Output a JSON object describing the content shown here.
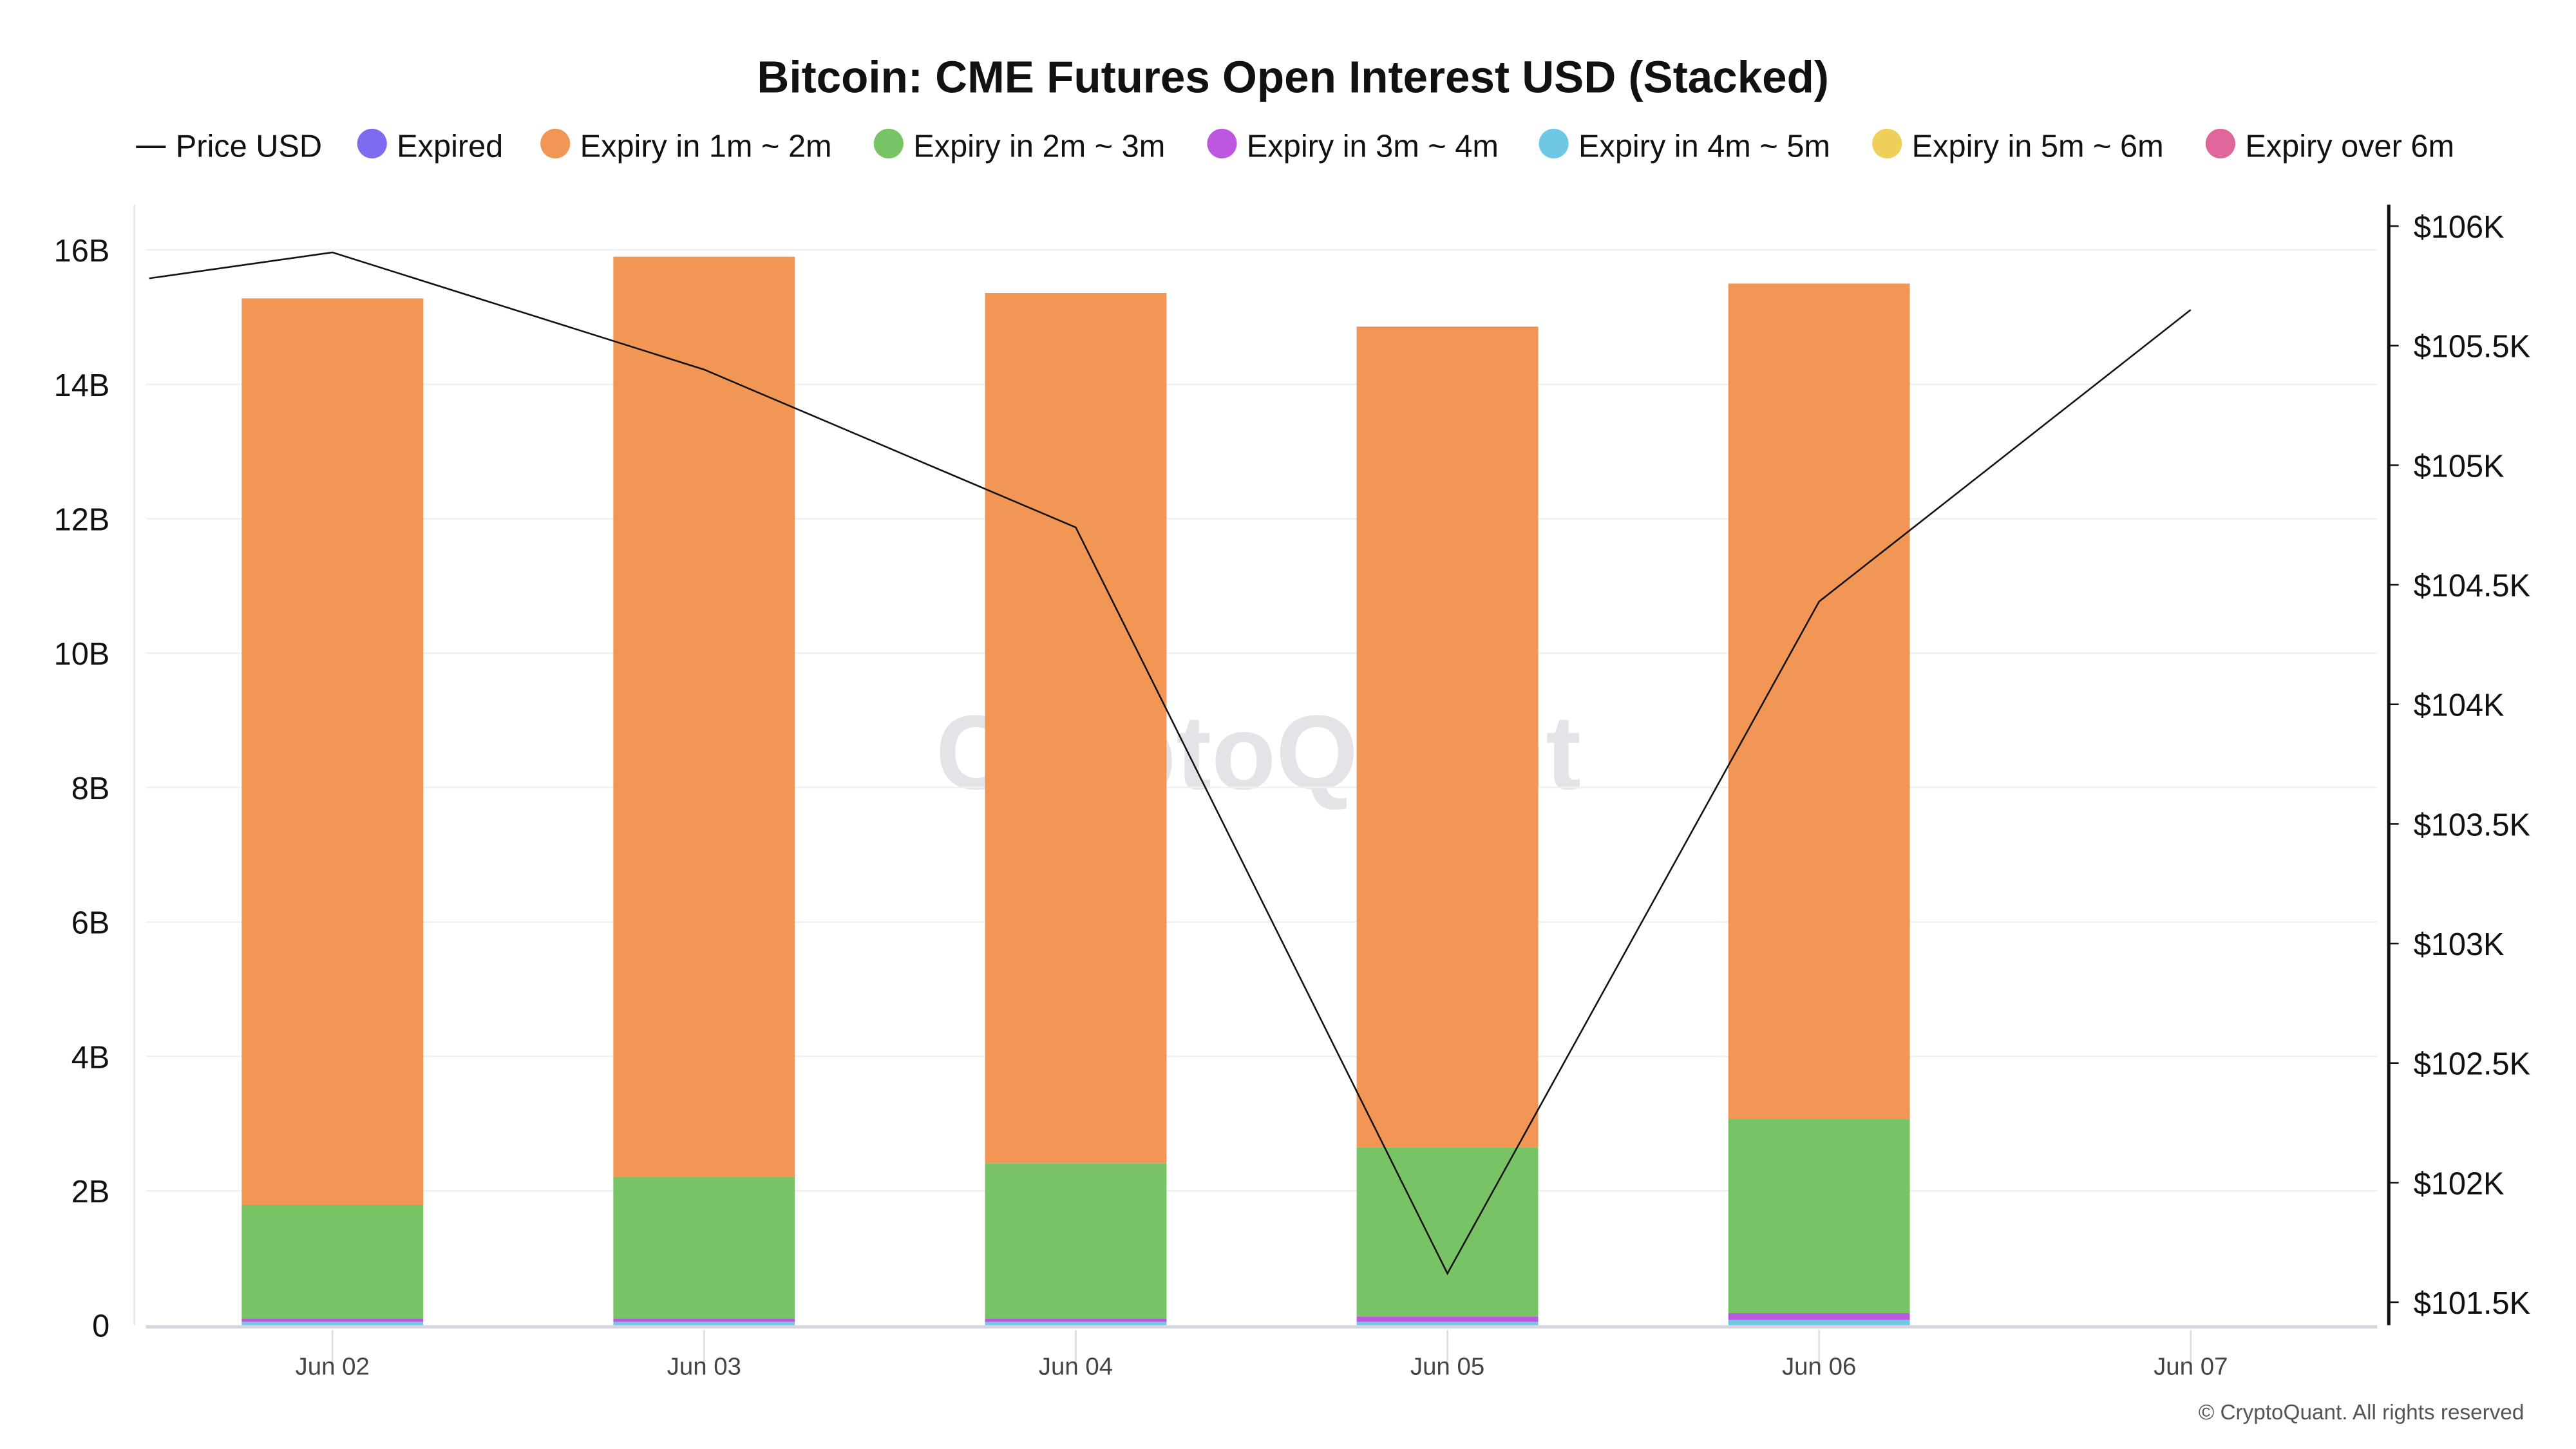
{
  "chart_data": {
    "type": "bar",
    "title": "Bitcoin: CME Futures Open Interest USD (Stacked)",
    "stacked": true,
    "categories": [
      "Jun 02",
      "Jun 03",
      "Jun 04",
      "Jun 05",
      "Jun 06",
      "Jun 07"
    ],
    "series": [
      {
        "name": "Expired",
        "color": "#7b6cf0",
        "values": [
          0,
          0,
          0,
          0,
          0,
          0
        ]
      },
      {
        "name": "Expiry in 4m ~ 5m",
        "color": "#6ec8e4",
        "values": [
          0.05,
          0.05,
          0.05,
          0.05,
          0.08,
          0
        ]
      },
      {
        "name": "Expiry in 3m ~ 4m",
        "color": "#bd57e0",
        "values": [
          0.05,
          0.05,
          0.05,
          0.08,
          0.1,
          0
        ]
      },
      {
        "name": "Expiry in 2m ~ 3m",
        "color": "#78c365",
        "values": [
          1.69,
          2.11,
          2.31,
          2.52,
          2.89,
          0
        ]
      },
      {
        "name": "Expiry in 1m ~ 2m",
        "color": "#f29656",
        "values": [
          13.49,
          13.69,
          12.95,
          12.21,
          12.43,
          0
        ]
      },
      {
        "name": "Expiry in 5m ~ 6m",
        "color": "#edcf5a",
        "values": [
          0,
          0,
          0,
          0,
          0,
          0
        ]
      },
      {
        "name": "Expiry over 6m",
        "color": "#e0679b",
        "values": [
          0,
          0,
          0,
          0,
          0,
          0
        ]
      }
    ],
    "line": {
      "name": "Price USD",
      "color": "#111111",
      "x": [
        1.5,
        2,
        3,
        4,
        5,
        6,
        7
      ],
      "values": [
        105.78,
        105.89,
        105.4,
        104.74,
        101.62,
        104.43,
        105.65
      ]
    },
    "legend": [
      "Price USD",
      "Expired",
      "Expiry in 1m ~ 2m",
      "Expiry in 2m ~ 3m",
      "Expiry in 3m ~ 4m",
      "Expiry in 4m ~ 5m",
      "Expiry in 5m ~ 6m",
      "Expiry over 6m"
    ],
    "legend_colors": [
      "#111111",
      "#7b6cf0",
      "#f29656",
      "#78c365",
      "#bd57e0",
      "#6ec8e4",
      "#edcf5a",
      "#e0679b"
    ],
    "legend_position": "top",
    "ylabel": "",
    "xlabel": "",
    "ylim": [
      0,
      16.8
    ],
    "yticks": [
      0,
      2,
      4,
      6,
      8,
      10,
      12,
      14,
      16
    ],
    "ytick_labels": [
      "0",
      "2B",
      "4B",
      "6B",
      "8B",
      "10B",
      "12B",
      "14B",
      "16B"
    ],
    "y2lim": [
      101.4,
      106.1
    ],
    "y2ticks": [
      101.5,
      102,
      102.5,
      103,
      103.5,
      104,
      104.5,
      105,
      105.5,
      106
    ],
    "y2tick_labels": [
      "$101.5K",
      "$102K",
      "$102.5K",
      "$103K",
      "$103.5K",
      "$104K",
      "$104.5K",
      "$105K",
      "$105.5K",
      "$106K"
    ],
    "grid": true
  },
  "watermark": "CryptoQuant",
  "footer": "© CryptoQuant. All rights reserved"
}
